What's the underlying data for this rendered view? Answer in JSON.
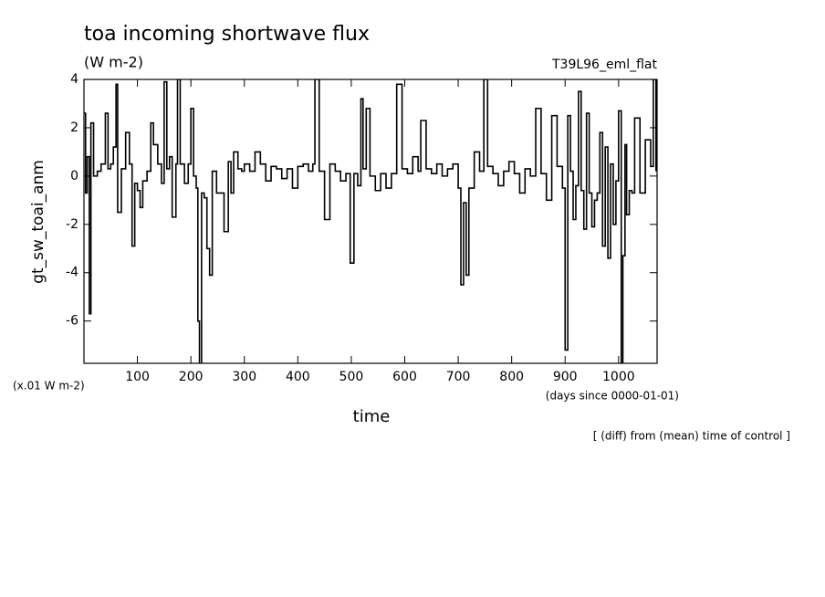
{
  "chart_data": {
    "type": "line",
    "step": true,
    "title": "toa incoming shortwave flux",
    "subtitle": "(W m-2)",
    "annotation_right": "T39L96_eml_flat",
    "y_label": "gt_sw_toai_anm",
    "y_unit_note": "(x.01 W m-2)",
    "x_unit_note": "(days since 0000-01-01)",
    "x_label": "time",
    "footnote": "[ (diff) from (mean) time of control ]",
    "xlim": [
      0,
      1072
    ],
    "ylim": [
      -7.75,
      4
    ],
    "xticks": [
      100,
      200,
      300,
      400,
      500,
      600,
      700,
      800,
      900,
      1000
    ],
    "yticks": [
      -6,
      -4,
      -2,
      0,
      2,
      4
    ],
    "grid": false,
    "color": "#000000",
    "x": [
      0,
      3,
      6,
      10,
      13,
      18,
      25,
      32,
      40,
      45,
      50,
      55,
      60,
      63,
      70,
      78,
      85,
      90,
      95,
      100,
      105,
      110,
      118,
      125,
      130,
      138,
      145,
      150,
      155,
      160,
      165,
      172,
      175,
      180,
      188,
      195,
      200,
      205,
      210,
      213,
      216,
      220,
      225,
      230,
      235,
      240,
      248,
      255,
      262,
      270,
      275,
      280,
      288,
      295,
      300,
      310,
      320,
      330,
      340,
      350,
      360,
      370,
      380,
      390,
      400,
      410,
      420,
      428,
      432,
      440,
      450,
      460,
      470,
      480,
      490,
      498,
      505,
      512,
      518,
      522,
      528,
      535,
      545,
      555,
      565,
      575,
      585,
      595,
      605,
      615,
      625,
      630,
      640,
      650,
      660,
      670,
      680,
      690,
      700,
      705,
      710,
      715,
      720,
      730,
      740,
      748,
      755,
      765,
      775,
      785,
      795,
      805,
      815,
      825,
      835,
      845,
      855,
      865,
      875,
      885,
      895,
      900,
      905,
      910,
      915,
      920,
      925,
      930,
      935,
      940,
      945,
      950,
      955,
      960,
      965,
      970,
      975,
      980,
      985,
      990,
      995,
      1000,
      1005,
      1008,
      1012,
      1015,
      1020,
      1025,
      1030,
      1040,
      1050,
      1060,
      1065,
      1070
    ],
    "values": [
      2.6,
      -0.7,
      0.8,
      -5.7,
      2.2,
      0,
      0.2,
      0.5,
      2.6,
      0.3,
      0.5,
      1.2,
      3.8,
      -1.5,
      0.3,
      1.8,
      0.5,
      -2.9,
      -0.3,
      -0.6,
      -1.3,
      -0.2,
      0.2,
      2.2,
      1.3,
      0.5,
      -0.3,
      3.9,
      0.3,
      0.8,
      -1.7,
      0.5,
      4.0,
      0.5,
      -0.3,
      0.5,
      2.8,
      0,
      -0.5,
      -6.0,
      -7.8,
      -0.7,
      -0.9,
      -3.0,
      -4.1,
      0.2,
      -0.7,
      -0.7,
      -2.3,
      0.6,
      -0.7,
      1.0,
      0.3,
      0.2,
      0.5,
      0.2,
      1.0,
      0.5,
      -0.2,
      0.4,
      0.3,
      -0.1,
      0.3,
      -0.5,
      0.4,
      0.5,
      0.2,
      0.5,
      4.0,
      0.2,
      -1.8,
      0.5,
      0.2,
      -0.2,
      0.1,
      -3.6,
      0.1,
      -0.4,
      3.2,
      0.3,
      2.8,
      0,
      -0.6,
      0.1,
      -0.5,
      0.1,
      3.8,
      0.3,
      0.1,
      0.8,
      0.2,
      2.3,
      0.3,
      0.1,
      0.5,
      0.0,
      0.3,
      0.5,
      -0.5,
      -4.5,
      -1.1,
      -4.1,
      -0.5,
      1.0,
      0.2,
      4.0,
      0.4,
      0.1,
      -0.4,
      0.2,
      0.6,
      0.1,
      -0.7,
      0.3,
      0.0,
      2.8,
      0.1,
      -1.0,
      2.5,
      0.4,
      -0.5,
      -7.2,
      2.5,
      0.2,
      -1.8,
      -0.4,
      3.5,
      -0.6,
      -2.2,
      2.6,
      -0.7,
      -2.1,
      -1.0,
      -0.7,
      1.8,
      -2.9,
      1.2,
      -3.4,
      0.5,
      -2.0,
      -0.2,
      2.7,
      -7.8,
      -3.3,
      1.3,
      -1.6,
      -0.6,
      -0.7,
      2.4,
      -0.7,
      1.5,
      0.4,
      4.0,
      0.2
    ]
  }
}
